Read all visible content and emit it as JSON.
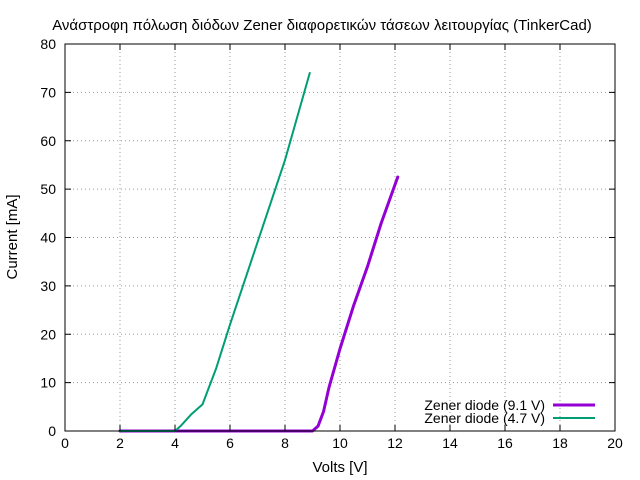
{
  "chart_data": {
    "type": "line",
    "title": "Ανάστροφη πόλωση διόδων Zener διαφορετικών τάσεων λειτουργίας (TinkerCad)",
    "xlabel": "Volts [V]",
    "ylabel": "Current [mA]",
    "xlim": [
      0,
      20
    ],
    "ylim": [
      0,
      80
    ],
    "xticks": [
      0,
      2,
      4,
      6,
      8,
      10,
      12,
      14,
      16,
      18,
      20
    ],
    "yticks": [
      0,
      10,
      20,
      30,
      40,
      50,
      60,
      70,
      80
    ],
    "grid": true,
    "legend_position": "bottom-right",
    "series": [
      {
        "name": "Zener diode (9.1 V)",
        "color": "#9400d3",
        "line_width": "thick",
        "points": [
          [
            2,
            0
          ],
          [
            4,
            0
          ],
          [
            6,
            0
          ],
          [
            8,
            0
          ],
          [
            9.0,
            0
          ],
          [
            9.2,
            1
          ],
          [
            9.4,
            4
          ],
          [
            9.6,
            9
          ],
          [
            10,
            17
          ],
          [
            10.5,
            26
          ],
          [
            11,
            34
          ],
          [
            11.5,
            43
          ],
          [
            12.1,
            52.5
          ]
        ]
      },
      {
        "name": "Zener diode (4.7 V)",
        "color": "#009e73",
        "line_width": "normal",
        "points": [
          [
            2,
            0
          ],
          [
            3,
            0
          ],
          [
            4,
            0
          ],
          [
            4.2,
            1
          ],
          [
            4.6,
            3.5
          ],
          [
            5.0,
            5.5
          ],
          [
            5.5,
            13
          ],
          [
            6,
            22
          ],
          [
            7,
            39
          ],
          [
            8,
            56
          ],
          [
            8.9,
            74
          ]
        ]
      }
    ]
  }
}
